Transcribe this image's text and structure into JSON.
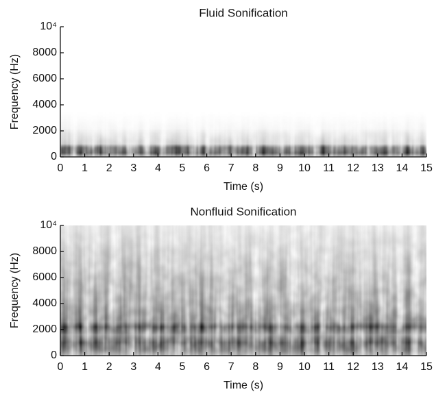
{
  "chart_data": [
    {
      "type": "spectrogram",
      "title": "Fluid Sonification",
      "x_label": "Time (s)",
      "y_label": "Frequency (Hz)",
      "xlim": [
        0,
        15
      ],
      "xticks": [
        0,
        1,
        2,
        3,
        4,
        5,
        6,
        7,
        8,
        9,
        10,
        11,
        12,
        13,
        14,
        15
      ],
      "ylim": [
        0,
        10000
      ],
      "yticks": [
        0,
        2000,
        4000,
        6000,
        8000,
        {
          "value": 10000,
          "label": "10⁴"
        }
      ]
    },
    {
      "type": "spectrogram",
      "title": "Nonfluid Sonification",
      "x_label": "Time (s)",
      "y_label": "Frequency (Hz)",
      "xlim": [
        0,
        15
      ],
      "xticks": [
        0,
        1,
        2,
        3,
        4,
        5,
        6,
        7,
        8,
        9,
        10,
        11,
        12,
        13,
        14,
        15
      ],
      "ylim": [
        0,
        10000
      ],
      "yticks": [
        0,
        2000,
        4000,
        6000,
        8000,
        {
          "value": 10000,
          "label": "10⁴"
        }
      ]
    }
  ]
}
